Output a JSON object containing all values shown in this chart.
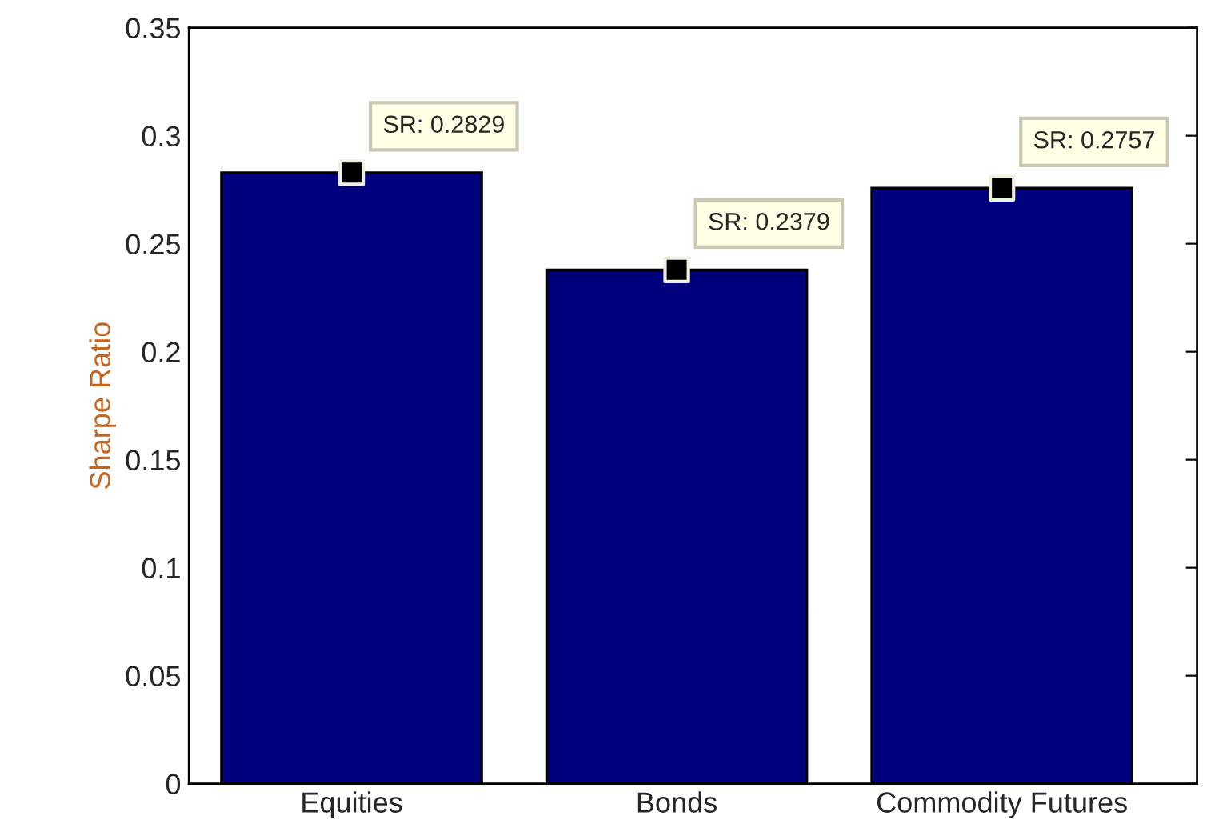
{
  "chart_data": {
    "type": "bar",
    "ylabel": "Sharpe Ratio",
    "categories": [
      "Equities",
      "Bonds",
      "Commodity Futures"
    ],
    "series": [
      {
        "color": "#00007f",
        "values": [
          0.2829,
          0.2379,
          0.2757
        ],
        "value_labels": [
          "SR: 0.2829",
          "SR: 0.2379",
          "SR: 0.2757"
        ]
      },
      {
        "type": "scatter",
        "color": "#000000",
        "marker": "square",
        "x": [
          "Equities",
          "Bonds",
          "Commodity Futures"
        ],
        "values": [
          0.2829,
          0.2379,
          0.2757
        ]
      }
    ],
    "ylim": [
      0,
      0.35
    ],
    "yticks": [
      0,
      0.05,
      0.1,
      0.15,
      0.2,
      0.25,
      0.3,
      0.35
    ],
    "grid": false,
    "legend": false
  }
}
